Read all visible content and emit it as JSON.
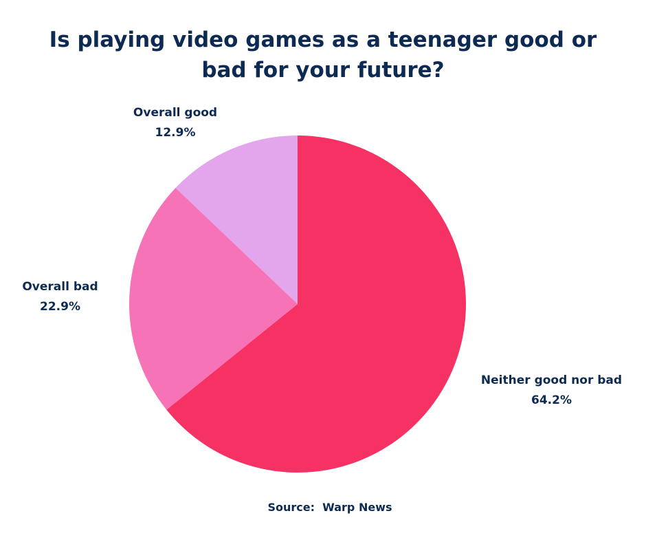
{
  "chart_data": {
    "type": "pie",
    "title": "Is playing video games as a teenager good or bad for your future?",
    "source": "Source:  Warp News",
    "slices": [
      {
        "label": "Neither good nor bad",
        "value": 64.2,
        "value_label": "64.2%",
        "color": "#f53263"
      },
      {
        "label": "Overall bad",
        "value": 22.9,
        "value_label": "22.9%",
        "color": "#f573b6"
      },
      {
        "label": "Overall good",
        "value": 12.9,
        "value_label": "12.9%",
        "color": "#e3a5ec"
      }
    ],
    "start_angle": "12 o'clock",
    "direction": "clockwise",
    "legend": "none"
  }
}
